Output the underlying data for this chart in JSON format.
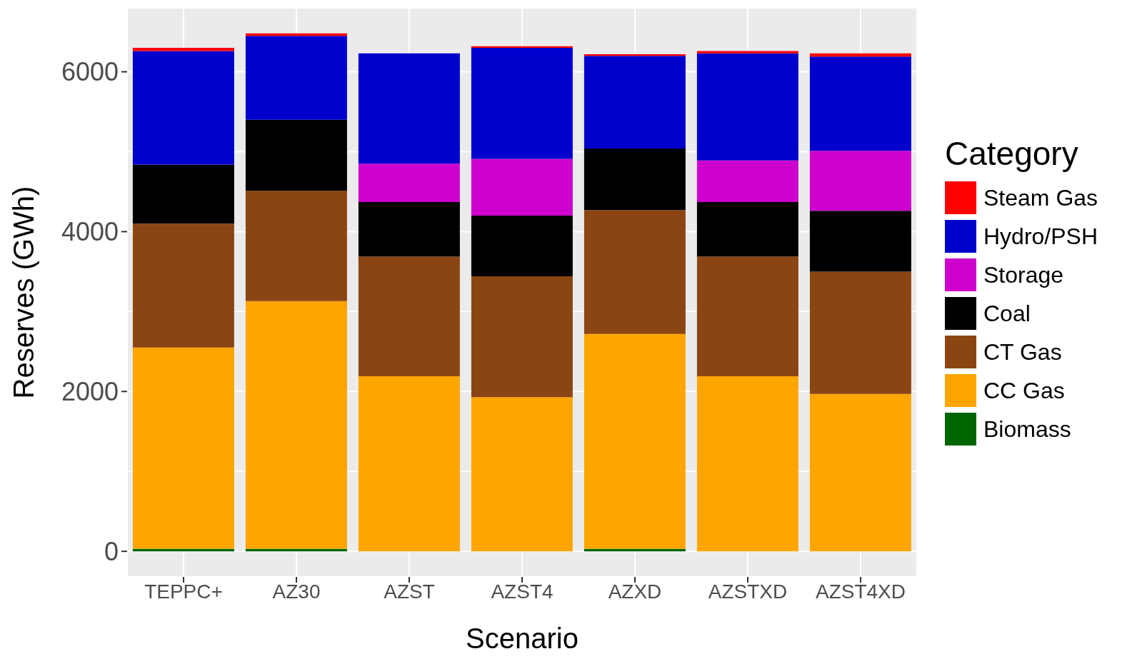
{
  "chart_data": {
    "type": "bar",
    "stacked": true,
    "xlabel": "Scenario",
    "ylabel": "Reserves (GWh)",
    "legend_title": "Category",
    "legend": "right",
    "grid": true,
    "categories": [
      "TEPPC+",
      "AZ30",
      "AZST",
      "AZST4",
      "AZXD",
      "AZSTXD",
      "AZST4XD"
    ],
    "ylim": [
      -320,
      6800
    ],
    "yticks": [
      0,
      {
        "value": 1000,
        "label": null
      },
      2000,
      {
        "value": 3000,
        "label": null
      },
      4000,
      {
        "value": 5000,
        "label": null
      },
      6000
    ],
    "series": [
      {
        "name": "Biomass",
        "color": "#006400",
        "values": [
          30,
          30,
          0,
          0,
          30,
          0,
          0
        ]
      },
      {
        "name": "CC Gas",
        "color": "#ffa500",
        "values": [
          2520,
          3100,
          2190,
          1930,
          2690,
          2190,
          1970
        ]
      },
      {
        "name": "CT Gas",
        "color": "#8b4513",
        "values": [
          1550,
          1380,
          1500,
          1510,
          1550,
          1500,
          1530
        ]
      },
      {
        "name": "Coal",
        "color": "#000000",
        "values": [
          740,
          890,
          680,
          760,
          770,
          680,
          760
        ]
      },
      {
        "name": "Storage",
        "color": "#cd00cd",
        "values": [
          0,
          0,
          480,
          710,
          0,
          520,
          750
        ]
      },
      {
        "name": "Hydro/PSH",
        "color": "#0000cd",
        "values": [
          1420,
          1050,
          1380,
          1390,
          1160,
          1340,
          1180
        ]
      },
      {
        "name": "Steam Gas",
        "color": "#ff0000",
        "values": [
          40,
          30,
          0,
          20,
          20,
          30,
          40
        ]
      }
    ]
  }
}
